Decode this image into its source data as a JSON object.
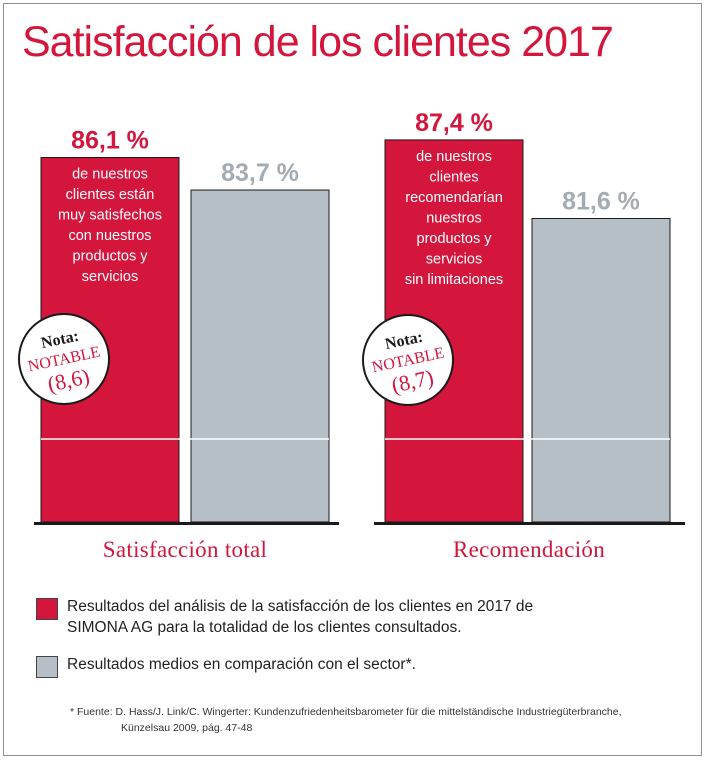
{
  "title": "Satisfacción de los clientes 2017",
  "colors": {
    "brand_red": "#d4163c",
    "sector_grey": "#b5bfc5",
    "value_grey": "#a3acb3"
  },
  "chart_data": {
    "type": "bar",
    "title": "Satisfacción de los clientes 2017",
    "unit": "%",
    "ylim": [
      0,
      100
    ],
    "categories": [
      "Satisfacción total",
      "Recomendación"
    ],
    "series": [
      {
        "color": "#d4163c",
        "values": [
          86.1,
          87.4
        ],
        "value_labels": [
          "86,1 %",
          "87,4 %"
        ],
        "bar_texts": [
          [
            "de nuestros",
            "clientes están",
            "muy satisfechos",
            "con nuestros",
            "productos y",
            "servicios"
          ],
          [
            "de nuestros",
            "clientes",
            "recomendarían",
            "nuestros",
            "productos y",
            "servicios",
            "sin limitaciones"
          ]
        ]
      },
      {
        "color": "#b5bfc5",
        "values": [
          83.7,
          81.6
        ],
        "value_labels": [
          "83,7 %",
          "81,6 %"
        ]
      }
    ],
    "badges": [
      {
        "line1": "Nota:",
        "line2": "NOTABLE",
        "line3": "(8,6)"
      },
      {
        "line1": "Nota:",
        "line2": "NOTABLE",
        "line3": "(8,7)"
      }
    ]
  },
  "legend": [
    {
      "color": "#d4163c",
      "text_line1": "Resultados del análisis de la satisfacción de los clientes en 2017 de",
      "text_line2": "SIMONA AG para la totalidad de los clientes consultados."
    },
    {
      "color": "#b5bfc5",
      "text_line1": "Resultados medios en comparación con el sector*.",
      "text_line2": ""
    }
  ],
  "footnote": {
    "line1": "* Fuente: D. Hass/J. Link/C. Wingerter: Kundenzufriedenheitsbarometer für die mittelständische Industriegüterbranche,",
    "line2": "Künzelsau 2009, pág. 47-48"
  }
}
